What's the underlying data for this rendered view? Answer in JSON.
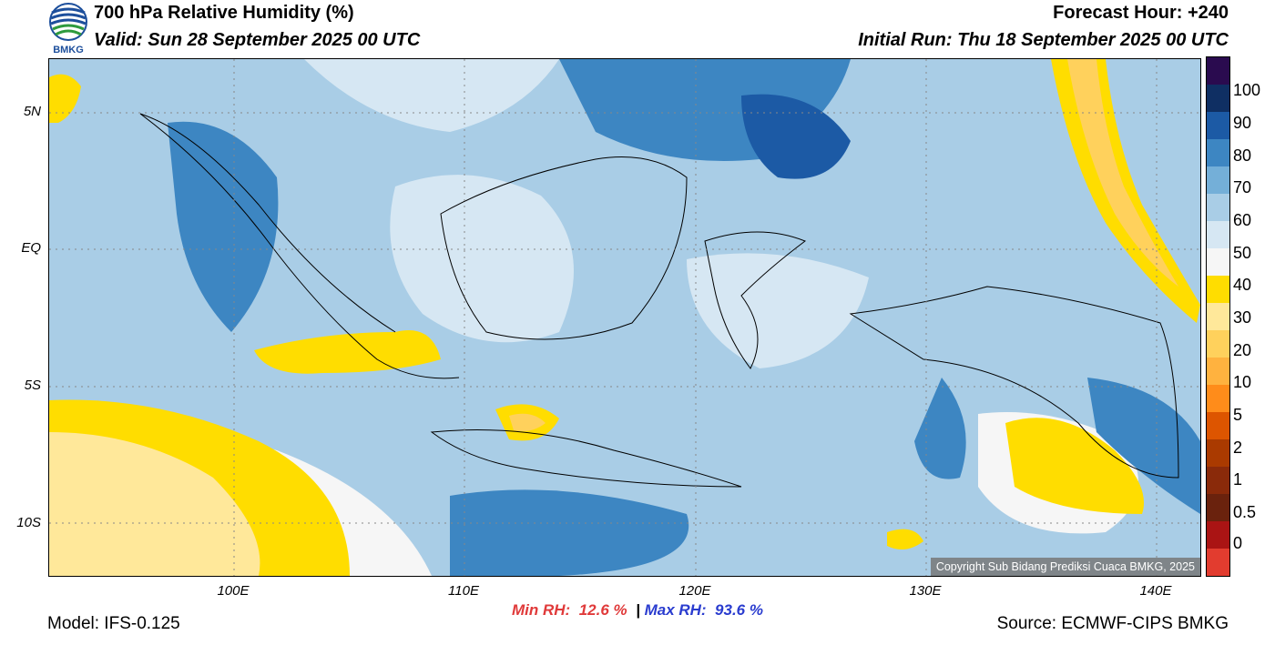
{
  "header": {
    "title": "700 hPa Relative Humidity (%)",
    "valid": "Valid: Sun 28 September 2025 00 UTC",
    "forecast_hour": "Forecast Hour: +240",
    "initial_run": "Initial Run: Thu 18 September 2025 00 UTC",
    "logo_text": "BMKG"
  },
  "map": {
    "lat_labels": [
      "5N",
      "EQ",
      "5S",
      "10S"
    ],
    "lon_labels": [
      "100E",
      "110E",
      "120E",
      "130E",
      "140E"
    ],
    "copyright": "Copyright Sub Bidang Prediksi Cuaca BMKG, 2025"
  },
  "colorbar": {
    "labels": [
      "100",
      "90",
      "80",
      "70",
      "60",
      "50",
      "40",
      "30",
      "20",
      "10",
      "5",
      "2",
      "1",
      "0.5",
      "0"
    ],
    "colors": [
      "#2a0b4f",
      "#0f2f63",
      "#1c5aa5",
      "#3d86c2",
      "#74afd8",
      "#a9cde6",
      "#d6e7f3",
      "#f6f6f6",
      "#ffdd00",
      "#ffe89a",
      "#ffd15c",
      "#ffb23f",
      "#ff8c1a",
      "#dd5500",
      "#aa3a00",
      "#8a2a0a",
      "#6a220d",
      "#aa1414",
      "#e23c2f"
    ]
  },
  "stats": {
    "min_label": "Min RH:",
    "min_value": "12.6 %",
    "separator": "|",
    "max_label": "Max RH:",
    "max_value": "93.6 %"
  },
  "footer": {
    "model": "Model: IFS-0.125",
    "source": "Source: ECMWF-CIPS BMKG"
  }
}
